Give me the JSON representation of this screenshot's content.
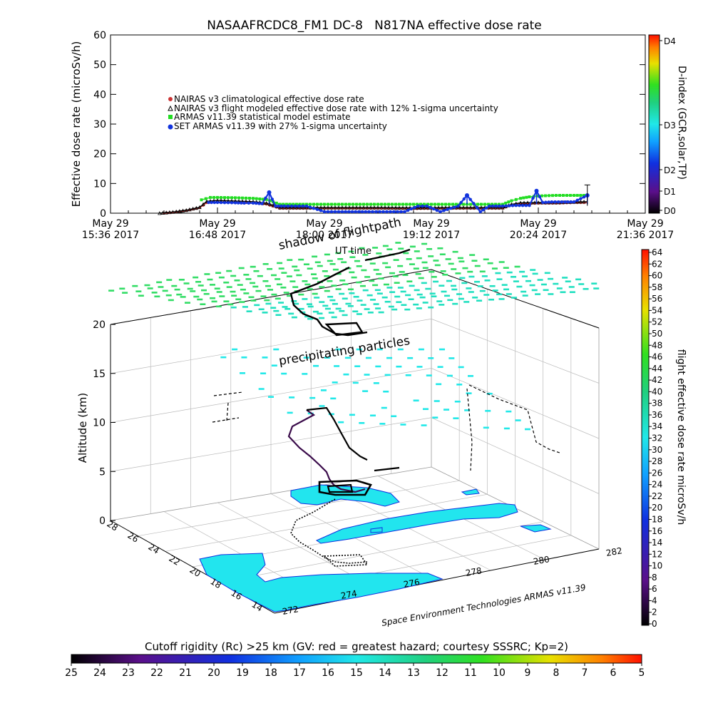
{
  "chart_data": [
    {
      "type": "line",
      "title": "NASAAFRCDC8_FM1 DC-8   N817NA effective dose rate",
      "xlabel": "UT time",
      "ylabel": "Effective dose rate (microSv/h)",
      "ylim": [
        0,
        60
      ],
      "yticks": [
        "0",
        "10",
        "20",
        "30",
        "40",
        "50",
        "60"
      ],
      "xlim": [
        15.6,
        21.6
      ],
      "xticks": [
        {
          "value": 15.6,
          "line1": "May 29",
          "line2": "15:36 2017"
        },
        {
          "value": 16.8,
          "line1": "May 29",
          "line2": "16:48 2017"
        },
        {
          "value": 18.0,
          "line1": "May 29",
          "line2": "18:00 2017"
        },
        {
          "value": 19.2,
          "line1": "May 29",
          "line2": "19:12 2017"
        },
        {
          "value": 20.4,
          "line1": "May 29",
          "line2": "20:24 2017"
        },
        {
          "value": 21.6,
          "line1": "May 29",
          "line2": "21:36 2017"
        }
      ],
      "legend_position": "upper-left",
      "legend": [
        "NAIRAS v3 climatological effective dose rate",
        "NAIRAS v3 flight modeled effective dose rate with 12% 1-sigma uncertainty",
        "ARMAS v11.39 statistical model estimate",
        "SET ARMAS v11.39 with 27% 1-sigma uncertainty"
      ],
      "series": [
        {
          "color": "#cc3333",
          "marker": "circle",
          "x": [
            16.2,
            16.3,
            16.45,
            16.6,
            16.68,
            16.8,
            17.0,
            17.2,
            17.35,
            17.5,
            17.8,
            18.2,
            18.6,
            19.0,
            19.4,
            19.8,
            20.0,
            20.1,
            20.2,
            20.4,
            20.6,
            20.8,
            20.95
          ],
          "y": [
            0,
            0.3,
            0.9,
            1.8,
            3.5,
            3.8,
            3.6,
            3.4,
            3.0,
            1.6,
            1.6,
            1.6,
            1.6,
            1.5,
            1.6,
            1.6,
            1.6,
            2.8,
            3.2,
            3.3,
            3.3,
            3.5,
            3.5
          ]
        },
        {
          "color": "#000000",
          "marker": "triangle",
          "x": [
            16.15,
            16.3,
            16.45,
            16.6,
            16.68,
            16.8,
            17.0,
            17.2,
            17.35,
            17.5,
            17.8,
            18.2,
            18.6,
            19.0,
            19.4,
            19.8,
            20.0,
            20.1,
            20.2,
            20.4,
            20.6,
            20.8,
            20.95
          ],
          "y": [
            0,
            0.4,
            1.0,
            2.0,
            4.0,
            4.3,
            4.1,
            3.9,
            3.4,
            1.9,
            1.9,
            1.9,
            1.9,
            1.8,
            1.9,
            1.9,
            1.9,
            3.0,
            3.5,
            3.6,
            3.6,
            3.8,
            3.9
          ]
        },
        {
          "color": "#22dd22",
          "marker": "square",
          "x": [
            16.62,
            16.72,
            16.8,
            17.0,
            17.2,
            17.35,
            17.5,
            17.8,
            18.2,
            18.6,
            19.0,
            19.4,
            19.8,
            20.0,
            20.1,
            20.2,
            20.3,
            20.4,
            20.6,
            20.8,
            20.95
          ],
          "y": [
            4.5,
            5.3,
            5.3,
            5.2,
            5.0,
            4.6,
            3.0,
            3.0,
            3.0,
            3.0,
            3.0,
            3.0,
            3.0,
            3.0,
            4.2,
            5.0,
            5.5,
            5.8,
            6.0,
            6.0,
            6.0
          ]
        },
        {
          "color": "#1133dd",
          "marker": "circle",
          "x": [
            16.7,
            16.8,
            17.0,
            17.1,
            17.2,
            17.3,
            17.38,
            17.45,
            17.55,
            17.8,
            18.0,
            18.2,
            18.5,
            18.7,
            18.9,
            19.05,
            19.15,
            19.3,
            19.5,
            19.6,
            19.75,
            19.85,
            20.0,
            20.15,
            20.3,
            20.38,
            20.45,
            20.55,
            20.7,
            20.8,
            20.95
          ],
          "y": [
            3.6,
            3.6,
            3.5,
            3.4,
            3.4,
            3.2,
            7.0,
            2.4,
            2.4,
            2.4,
            0.5,
            0.5,
            0.5,
            0.5,
            0.5,
            2.4,
            2.4,
            0.5,
            2.4,
            6.0,
            0.5,
            2.4,
            2.4,
            2.6,
            2.6,
            7.5,
            3.6,
            3.8,
            3.8,
            3.8,
            6.0
          ]
        }
      ]
    },
    {
      "type": "scatter",
      "title": "",
      "xlabel": "",
      "ylabel": "Altitude (km)",
      "zticks": [
        "0",
        "5",
        "10",
        "15",
        "20"
      ],
      "lat_ticks": [
        "14",
        "16",
        "18",
        "20",
        "22",
        "24",
        "26",
        "28"
      ],
      "lon_ticks": [
        "272",
        "274",
        "276",
        "278",
        "280",
        "282"
      ],
      "annotations": [
        "shadow of flightpath",
        "precipitating particles"
      ],
      "credit": "Space Environment Technologies ARMAS v11.39",
      "right_colorbar": {
        "label": "flight effective dose rate microSv/h",
        "min": 0,
        "max": 64,
        "step": 2
      },
      "bottom_colorbar": {
        "label": "Cutoff rigidity (Rc) >25 km (GV: red = greatest hazard; courtesy SSSRC; Kp=2)",
        "ticks": [
          "25",
          "24",
          "23",
          "22",
          "21",
          "20",
          "19",
          "18",
          "17",
          "16",
          "15",
          "14",
          "13",
          "12",
          "11",
          "10",
          "9",
          "8",
          "7",
          "6",
          "5"
        ]
      },
      "dindex_colorbar": {
        "label": "D-index (GCR,solar,TP)",
        "ticks": [
          "D0",
          "D1",
          "D2",
          "D3",
          "D4"
        ]
      }
    }
  ]
}
